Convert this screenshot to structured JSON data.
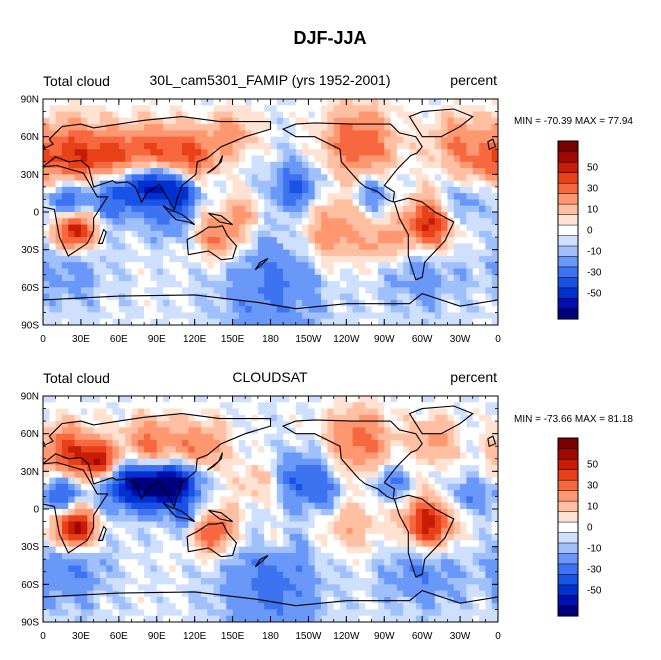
{
  "figure_title": "DJF-JJA",
  "chart_data": [
    {
      "type": "heatmap",
      "left_title": "Total cloud",
      "center_title": "30L_cam5301_FAMIP (yrs 1952-2001)",
      "units": "percent",
      "min_max_label": "MIN = -70.39 MAX =  77.94",
      "min": -70.39,
      "max": 77.94,
      "x_ticks": [
        "0",
        "30E",
        "60E",
        "90E",
        "120E",
        "150E",
        "180",
        "150W",
        "120W",
        "90W",
        "60W",
        "30W",
        "0"
      ],
      "y_ticks": [
        "90N",
        "60N",
        "30N",
        "0",
        "30S",
        "60S",
        "90S"
      ],
      "colorbar_labels": [
        "50",
        "30",
        "10",
        "0",
        "-10",
        "-30",
        "-50"
      ],
      "blobs": [
        {
          "lon": 20,
          "lat": 45,
          "r": 28,
          "v": 45
        },
        {
          "lon": 55,
          "lat": 42,
          "r": 22,
          "v": 40
        },
        {
          "lon": 90,
          "lat": 48,
          "r": 25,
          "v": 35
        },
        {
          "lon": 120,
          "lat": 45,
          "r": 20,
          "v": 30
        },
        {
          "lon": 150,
          "lat": 62,
          "r": 18,
          "v": 25
        },
        {
          "lon": 250,
          "lat": 55,
          "r": 28,
          "v": 40
        },
        {
          "lon": 330,
          "lat": 55,
          "r": 22,
          "v": 30
        },
        {
          "lon": 350,
          "lat": 38,
          "r": 12,
          "v": 20
        },
        {
          "lon": 25,
          "lat": -15,
          "r": 16,
          "v": 65
        },
        {
          "lon": 305,
          "lat": -10,
          "r": 20,
          "v": 55
        },
        {
          "lon": 140,
          "lat": -20,
          "r": 18,
          "v": 35
        },
        {
          "lon": 230,
          "lat": -15,
          "r": 25,
          "v": 30
        },
        {
          "lon": 270,
          "lat": -25,
          "r": 15,
          "v": 25
        },
        {
          "lon": 160,
          "lat": 0,
          "r": 15,
          "v": 20
        },
        {
          "lon": 60,
          "lat": 18,
          "r": 22,
          "v": -45
        },
        {
          "lon": 90,
          "lat": 22,
          "r": 16,
          "v": -55
        },
        {
          "lon": 110,
          "lat": 15,
          "r": 14,
          "v": -40
        },
        {
          "lon": 20,
          "lat": 10,
          "r": 18,
          "v": -35
        },
        {
          "lon": 200,
          "lat": 20,
          "r": 20,
          "v": -30
        },
        {
          "lon": 260,
          "lat": 15,
          "r": 14,
          "v": -25
        },
        {
          "lon": 330,
          "lat": 5,
          "r": 16,
          "v": -20
        },
        {
          "lon": 100,
          "lat": -8,
          "r": 16,
          "v": -20
        },
        {
          "lon": 20,
          "lat": -45,
          "r": 30,
          "v": -15
        },
        {
          "lon": 180,
          "lat": -50,
          "r": 40,
          "v": -15
        },
        {
          "lon": 300,
          "lat": -50,
          "r": 30,
          "v": -15
        },
        {
          "lon": 180,
          "lat": -78,
          "r": 40,
          "v": -10
        }
      ]
    },
    {
      "type": "heatmap",
      "left_title": "Total cloud",
      "center_title": "CLOUDSAT",
      "units": "percent",
      "min_max_label": "MIN = -73.66 MAX =  81.18",
      "min": -73.66,
      "max": 81.18,
      "x_ticks": [
        "0",
        "30E",
        "60E",
        "90E",
        "120E",
        "150E",
        "180",
        "150W",
        "120W",
        "90W",
        "60W",
        "30W",
        "0"
      ],
      "y_ticks": [
        "90N",
        "60N",
        "30N",
        "0",
        "30S",
        "60S",
        "90S"
      ],
      "colorbar_labels": [
        "50",
        "30",
        "10",
        "0",
        "-10",
        "-30",
        "-50"
      ],
      "blobs": [
        {
          "lon": 20,
          "lat": 45,
          "r": 22,
          "v": 45
        },
        {
          "lon": 45,
          "lat": 38,
          "r": 14,
          "v": 55
        },
        {
          "lon": 85,
          "lat": 50,
          "r": 22,
          "v": 35
        },
        {
          "lon": 125,
          "lat": 50,
          "r": 20,
          "v": 30
        },
        {
          "lon": 250,
          "lat": 55,
          "r": 25,
          "v": 35
        },
        {
          "lon": 310,
          "lat": 55,
          "r": 18,
          "v": 25
        },
        {
          "lon": 25,
          "lat": -15,
          "r": 16,
          "v": 70
        },
        {
          "lon": 305,
          "lat": -12,
          "r": 20,
          "v": 60
        },
        {
          "lon": 135,
          "lat": -18,
          "r": 18,
          "v": 45
        },
        {
          "lon": 240,
          "lat": -10,
          "r": 25,
          "v": 20
        },
        {
          "lon": 180,
          "lat": -25,
          "r": 15,
          "v": 15
        },
        {
          "lon": 170,
          "lat": 20,
          "r": 18,
          "v": 15
        },
        {
          "lon": 65,
          "lat": 20,
          "r": 20,
          "v": -45
        },
        {
          "lon": 90,
          "lat": 18,
          "r": 18,
          "v": -60
        },
        {
          "lon": 110,
          "lat": 22,
          "r": 16,
          "v": -45
        },
        {
          "lon": 15,
          "lat": 12,
          "r": 16,
          "v": -35
        },
        {
          "lon": 205,
          "lat": 25,
          "r": 20,
          "v": -30
        },
        {
          "lon": 225,
          "lat": 10,
          "r": 18,
          "v": -20
        },
        {
          "lon": 275,
          "lat": 20,
          "r": 14,
          "v": -25
        },
        {
          "lon": 335,
          "lat": 10,
          "r": 15,
          "v": -20
        },
        {
          "lon": 115,
          "lat": -5,
          "r": 14,
          "v": -25
        },
        {
          "lon": 20,
          "lat": -50,
          "r": 30,
          "v": -20
        },
        {
          "lon": 180,
          "lat": -50,
          "r": 40,
          "v": -18
        },
        {
          "lon": 300,
          "lat": -50,
          "r": 30,
          "v": -20
        },
        {
          "lon": 180,
          "lat": -80,
          "r": 40,
          "v": -10
        }
      ]
    }
  ],
  "colorbar_colors": [
    "#00007f",
    "#0010b0",
    "#0030d0",
    "#1a52e8",
    "#3d72f0",
    "#6a98f8",
    "#a0c0fc",
    "#cfe0fe",
    "#ffffff",
    "#ffe2d2",
    "#ffbfa2",
    "#ff9870",
    "#f86840",
    "#e84018",
    "#c81c08",
    "#a00800",
    "#780000"
  ]
}
